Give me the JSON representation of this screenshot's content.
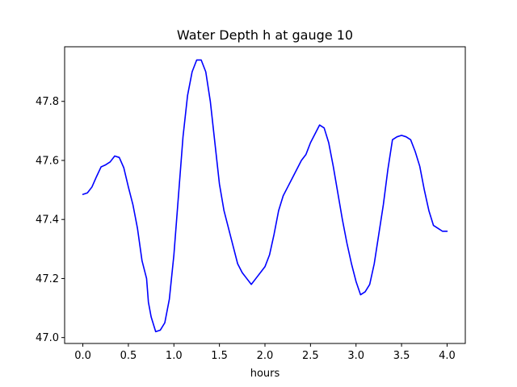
{
  "chart_data": {
    "type": "line",
    "title": "Water Depth h at gauge 10",
    "xlabel": "hours",
    "ylabel": "",
    "xlim": [
      -0.2,
      4.2
    ],
    "ylim": [
      46.98,
      47.985
    ],
    "xticks": [
      0.0,
      0.5,
      1.0,
      1.5,
      2.0,
      2.5,
      3.0,
      3.5,
      4.0
    ],
    "xtick_labels": [
      "0.0",
      "0.5",
      "1.0",
      "1.5",
      "2.0",
      "2.5",
      "3.0",
      "3.5",
      "4.0"
    ],
    "yticks": [
      47.0,
      47.2,
      47.4,
      47.6,
      47.8
    ],
    "ytick_labels": [
      "47.0",
      "47.2",
      "47.4",
      "47.6",
      "47.8"
    ],
    "grid": false,
    "series": [
      {
        "color": "#0000ff",
        "x": [
          0.0,
          0.05,
          0.1,
          0.15,
          0.2,
          0.25,
          0.3,
          0.35,
          0.4,
          0.45,
          0.5,
          0.55,
          0.6,
          0.65,
          0.7,
          0.72,
          0.75,
          0.8,
          0.85,
          0.9,
          0.95,
          1.0,
          1.05,
          1.1,
          1.15,
          1.2,
          1.25,
          1.3,
          1.35,
          1.4,
          1.45,
          1.5,
          1.55,
          1.6,
          1.65,
          1.7,
          1.75,
          1.8,
          1.85,
          1.9,
          1.95,
          2.0,
          2.05,
          2.1,
          2.15,
          2.2,
          2.25,
          2.3,
          2.35,
          2.4,
          2.45,
          2.5,
          2.55,
          2.6,
          2.65,
          2.7,
          2.75,
          2.8,
          2.85,
          2.9,
          2.95,
          3.0,
          3.05,
          3.1,
          3.15,
          3.2,
          3.25,
          3.3,
          3.35,
          3.4,
          3.45,
          3.5,
          3.55,
          3.6,
          3.65,
          3.7,
          3.75,
          3.8,
          3.85,
          3.9,
          3.95,
          4.0
        ],
        "y": [
          47.485,
          47.49,
          47.51,
          47.545,
          47.578,
          47.585,
          47.595,
          47.615,
          47.61,
          47.575,
          47.51,
          47.45,
          47.37,
          47.26,
          47.2,
          47.12,
          47.07,
          47.02,
          47.025,
          47.05,
          47.13,
          47.28,
          47.48,
          47.68,
          47.82,
          47.9,
          47.94,
          47.94,
          47.9,
          47.8,
          47.66,
          47.52,
          47.43,
          47.37,
          47.31,
          47.25,
          47.22,
          47.2,
          47.18,
          47.2,
          47.22,
          47.24,
          47.28,
          47.35,
          47.43,
          47.48,
          47.51,
          47.54,
          47.57,
          47.6,
          47.62,
          47.66,
          47.69,
          47.72,
          47.71,
          47.66,
          47.58,
          47.49,
          47.4,
          47.32,
          47.25,
          47.19,
          47.145,
          47.155,
          47.18,
          47.25,
          47.35,
          47.45,
          47.57,
          47.67,
          47.68,
          47.685,
          47.68,
          47.67,
          47.63,
          47.58,
          47.5,
          47.43,
          47.38,
          47.37,
          47.36,
          47.36
        ]
      }
    ]
  }
}
